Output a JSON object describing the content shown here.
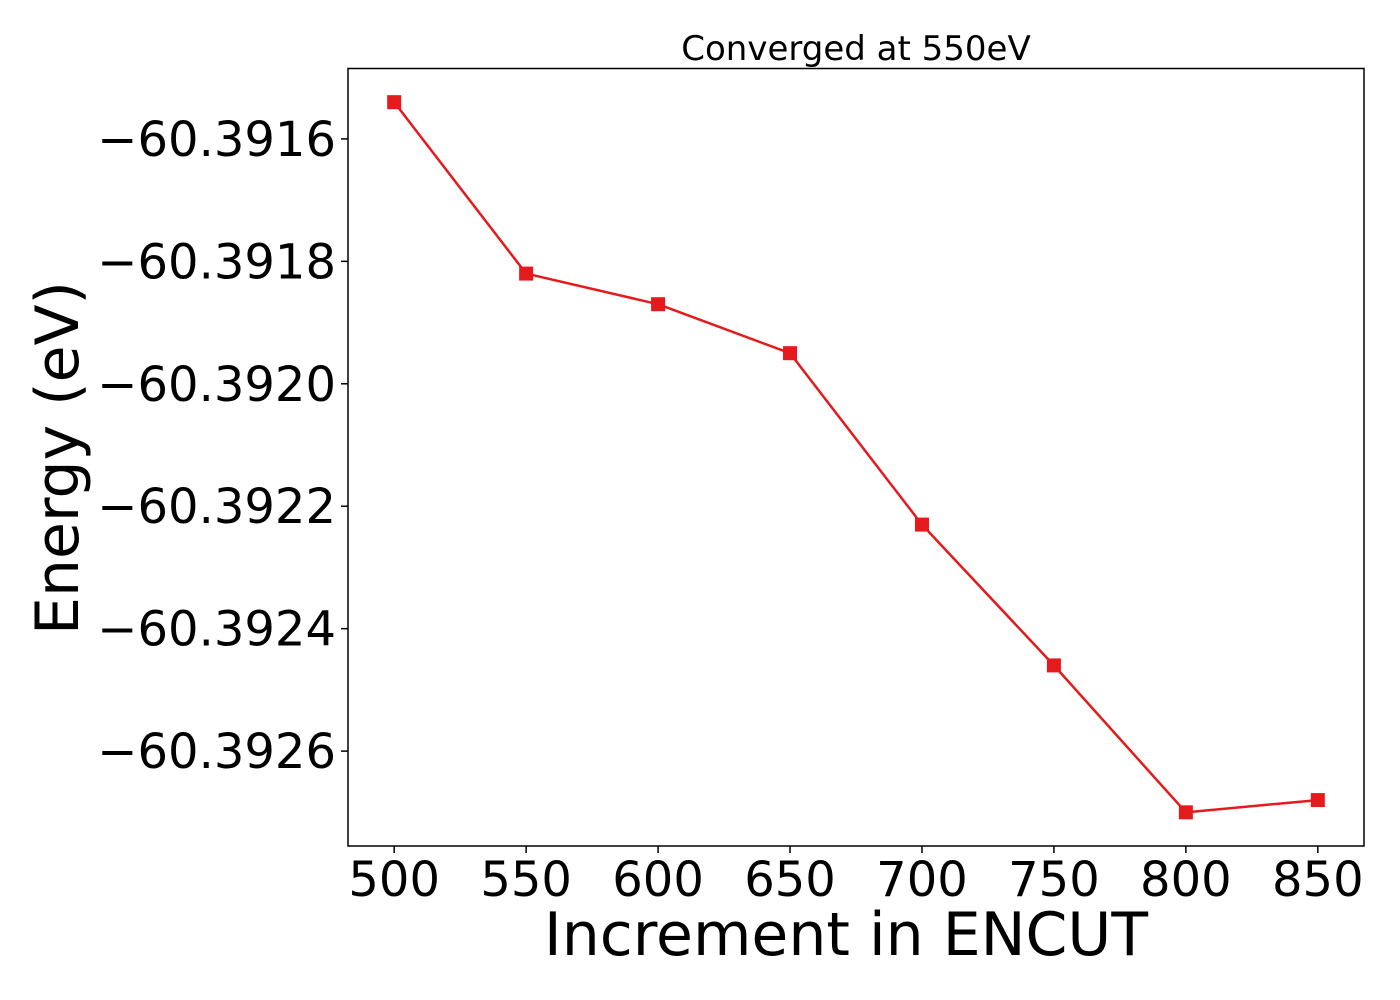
{
  "chart_data": {
    "type": "line",
    "title": "Converged at 550eV",
    "xlabel": "Increment in ENCUT",
    "ylabel": "Energy (eV)",
    "x": [
      500,
      550,
      600,
      650,
      700,
      750,
      800,
      850
    ],
    "series": [
      {
        "values": [
          -60.39154,
          -60.39182,
          -60.39187,
          -60.39195,
          -60.39223,
          -60.39246,
          -60.3927,
          -60.39268
        ],
        "color": "#e41a1c",
        "marker": "square"
      }
    ],
    "xticks": [
      500,
      550,
      600,
      650,
      700,
      750,
      800,
      850
    ],
    "xtick_labels": [
      "500",
      "550",
      "600",
      "650",
      "700",
      "750",
      "800",
      "850"
    ],
    "yticks": [
      -60.3916,
      -60.3918,
      -60.392,
      -60.3922,
      -60.3924,
      -60.3926
    ],
    "ytick_labels": [
      "−60.3916",
      "−60.3918",
      "−60.3920",
      "−60.3922",
      "−60.3924",
      "−60.3926"
    ],
    "xlim": [
      482.5,
      867.5
    ],
    "ylim": [
      -60.392755,
      -60.391485
    ],
    "grid": false,
    "legend": false
  }
}
